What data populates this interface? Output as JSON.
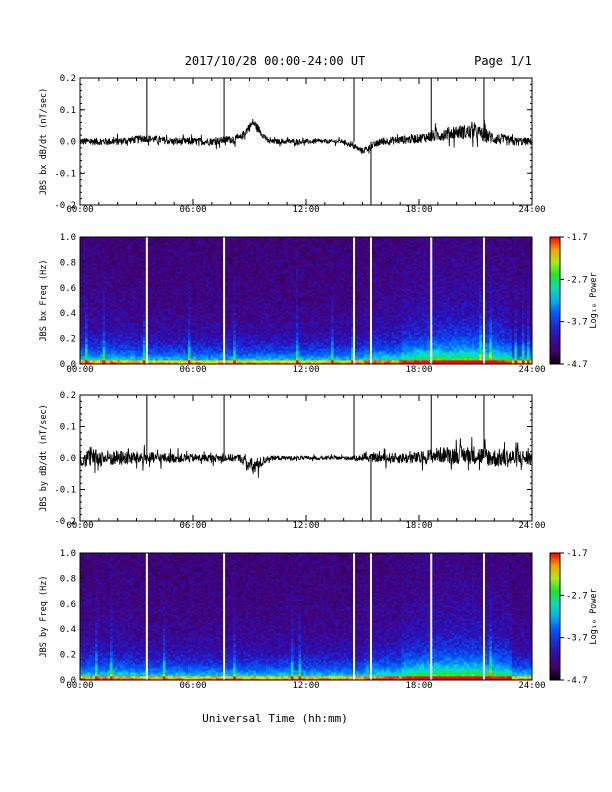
{
  "header": {
    "title": "2017/10/28  00:00-24:00 UT",
    "page": "Page 1/1"
  },
  "xlabel": "Universal Time (hh:mm)",
  "chart_data": [
    {
      "type": "line",
      "ylabel": "JBS bx dB/dt (nT/sec)",
      "xlim": [
        0,
        24
      ],
      "ylim": [
        -0.2,
        0.2
      ],
      "x_tick_labels": [
        "00:00",
        "06:00",
        "12:00",
        "18:00",
        "24:00"
      ],
      "y_tick_labels": [
        "0.2",
        "0.1",
        "0.0",
        "-0.1",
        "-0.2"
      ],
      "series": [
        {
          "values_note_free": true,
          "x": [
            0,
            2,
            3.5,
            5,
            7,
            8.5,
            9.2,
            10,
            12,
            14,
            15,
            16,
            18,
            19,
            20,
            21,
            22,
            23,
            24
          ],
          "y": [
            0.0,
            0.0,
            0.01,
            0.0,
            0.0,
            0.01,
            0.06,
            0.0,
            0.0,
            0.0,
            -0.03,
            0.0,
            0.01,
            0.02,
            0.03,
            0.03,
            0.01,
            0.0,
            0.0
          ],
          "noise_amplitude": [
            0.012,
            0.012,
            0.012,
            0.012,
            0.012,
            0.012,
            0.015,
            0.008,
            0.008,
            0.006,
            0.01,
            0.012,
            0.015,
            0.02,
            0.022,
            0.025,
            0.02,
            0.015,
            0.012
          ]
        }
      ],
      "spikes": [
        3.55,
        7.65,
        14.55,
        15.45,
        18.65,
        21.45
      ]
    },
    {
      "type": "heatmap",
      "ylabel": "JBS bx Freq (Hz)",
      "xlim": [
        0,
        24
      ],
      "ylim": [
        0.0,
        1.0
      ],
      "x_tick_labels": [
        "00:00",
        "06:00",
        "12:00",
        "18:00",
        "24:00"
      ],
      "y_tick_labels": [
        "1.0",
        "0.8",
        "0.6",
        "0.4",
        "0.2",
        "0.0"
      ],
      "colorbar": {
        "label": "Log₁₀ Power",
        "ticks": [
          "-1.7",
          "-2.7",
          "-3.7",
          "-4.7"
        ],
        "range": [
          -4.7,
          -1.7
        ]
      },
      "gaps": [
        3.55,
        7.65,
        14.55,
        15.45,
        18.65,
        21.45
      ]
    },
    {
      "type": "line",
      "ylabel": "JBS by dB/dt (nT/sec)",
      "xlim": [
        0,
        24
      ],
      "ylim": [
        -0.2,
        0.2
      ],
      "x_tick_labels": [
        "00:00",
        "06:00",
        "12:00",
        "18:00",
        "24:00"
      ],
      "y_tick_labels": [
        "0.2",
        "0.1",
        "0.0",
        "-0.1",
        "-0.2"
      ],
      "series": [
        {
          "x": [
            0,
            2,
            3.5,
            5,
            7,
            8.5,
            9.2,
            10,
            12,
            14,
            15,
            16,
            18,
            19,
            20,
            21,
            22,
            23,
            24
          ],
          "y": [
            0.0,
            0.0,
            0.0,
            0.0,
            0.0,
            0.0,
            -0.03,
            0.0,
            0.0,
            0.0,
            0.0,
            0.0,
            0.0,
            0.01,
            0.01,
            0.01,
            0.0,
            0.0,
            0.0
          ],
          "noise_amplitude": [
            0.03,
            0.025,
            0.02,
            0.015,
            0.012,
            0.012,
            0.03,
            0.008,
            0.006,
            0.006,
            0.01,
            0.015,
            0.02,
            0.025,
            0.028,
            0.03,
            0.03,
            0.03,
            0.025
          ]
        }
      ],
      "spikes": [
        3.55,
        7.65,
        14.55,
        15.45,
        18.65,
        21.45
      ]
    },
    {
      "type": "heatmap",
      "ylabel": "JBS by Freq (Hz)",
      "xlim": [
        0,
        24
      ],
      "ylim": [
        0.0,
        1.0
      ],
      "x_tick_labels": [
        "00:00",
        "06:00",
        "12:00",
        "18:00",
        "24:00"
      ],
      "y_tick_labels": [
        "1.0",
        "0.8",
        "0.6",
        "0.4",
        "0.2",
        "0.0"
      ],
      "colorbar": {
        "label": "Log₁₀ Power",
        "ticks": [
          "-1.7",
          "-2.7",
          "-3.7",
          "-4.7"
        ],
        "range": [
          -4.7,
          -1.7
        ]
      },
      "gaps": [
        3.55,
        7.65,
        14.55,
        15.45,
        18.65,
        21.45
      ]
    }
  ]
}
